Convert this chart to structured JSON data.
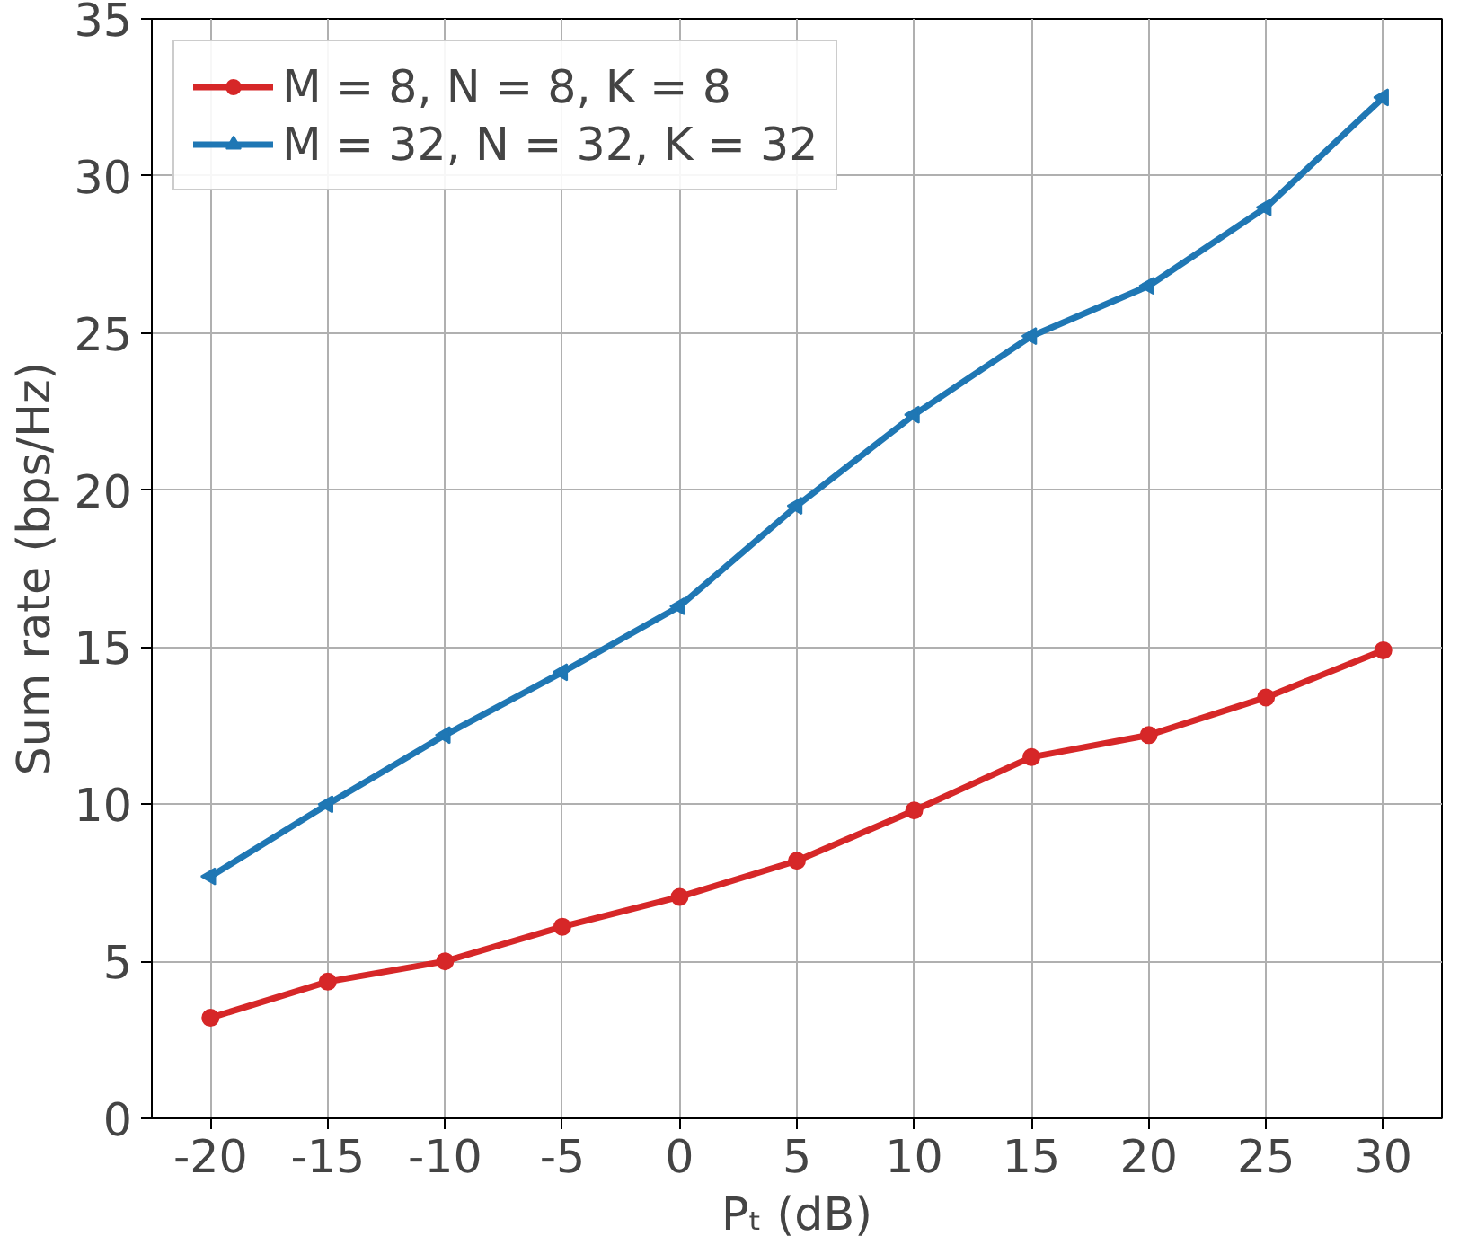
{
  "chart_data": {
    "type": "line",
    "xlabel": "Pₜ (dB)",
    "ylabel": "Sum rate (bps/Hz)",
    "x": [
      -20,
      -15,
      -10,
      -5,
      0,
      5,
      10,
      15,
      20,
      25,
      30
    ],
    "series": [
      {
        "name": "M = 8, N = 8, K = 8",
        "color": "#d62728",
        "marker": "circle",
        "values": [
          3.2,
          4.35,
          5.0,
          6.1,
          7.05,
          8.2,
          9.8,
          11.5,
          12.2,
          13.4,
          14.9
        ]
      },
      {
        "name": "M = 32, N = 32, K = 32",
        "color": "#1f77b4",
        "marker": "triangle",
        "values": [
          7.7,
          10.0,
          12.2,
          14.2,
          16.3,
          19.5,
          22.4,
          24.9,
          26.5,
          29.0,
          32.5
        ]
      }
    ],
    "xlim": [
      -22.5,
      32.5
    ],
    "xticks": [
      -20,
      -15,
      -10,
      -5,
      0,
      5,
      10,
      15,
      20,
      25,
      30
    ],
    "ylim": [
      0,
      35
    ],
    "yticks": [
      0,
      5,
      10,
      15,
      20,
      25,
      30,
      35
    ],
    "grid": true,
    "legend": "top left",
    "line_style": "solid"
  }
}
